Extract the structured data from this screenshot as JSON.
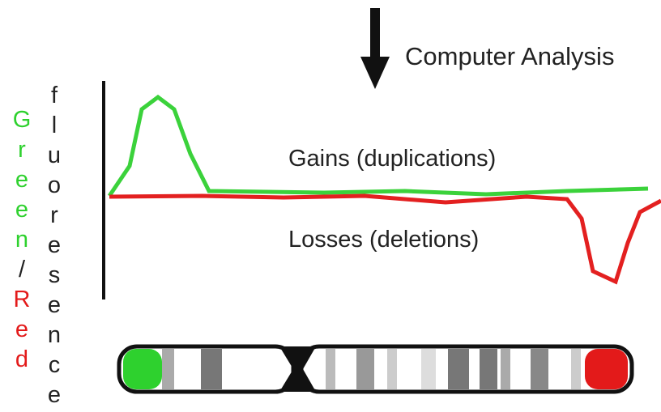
{
  "header": {
    "title": "Computer Analysis"
  },
  "annotations": {
    "gains": "Gains (duplications)",
    "losses": "Losses (deletions)"
  },
  "axis_label": {
    "green": "Green",
    "slash": "/",
    "red": "Red",
    "fluorescence": "fluoresence"
  }
}
